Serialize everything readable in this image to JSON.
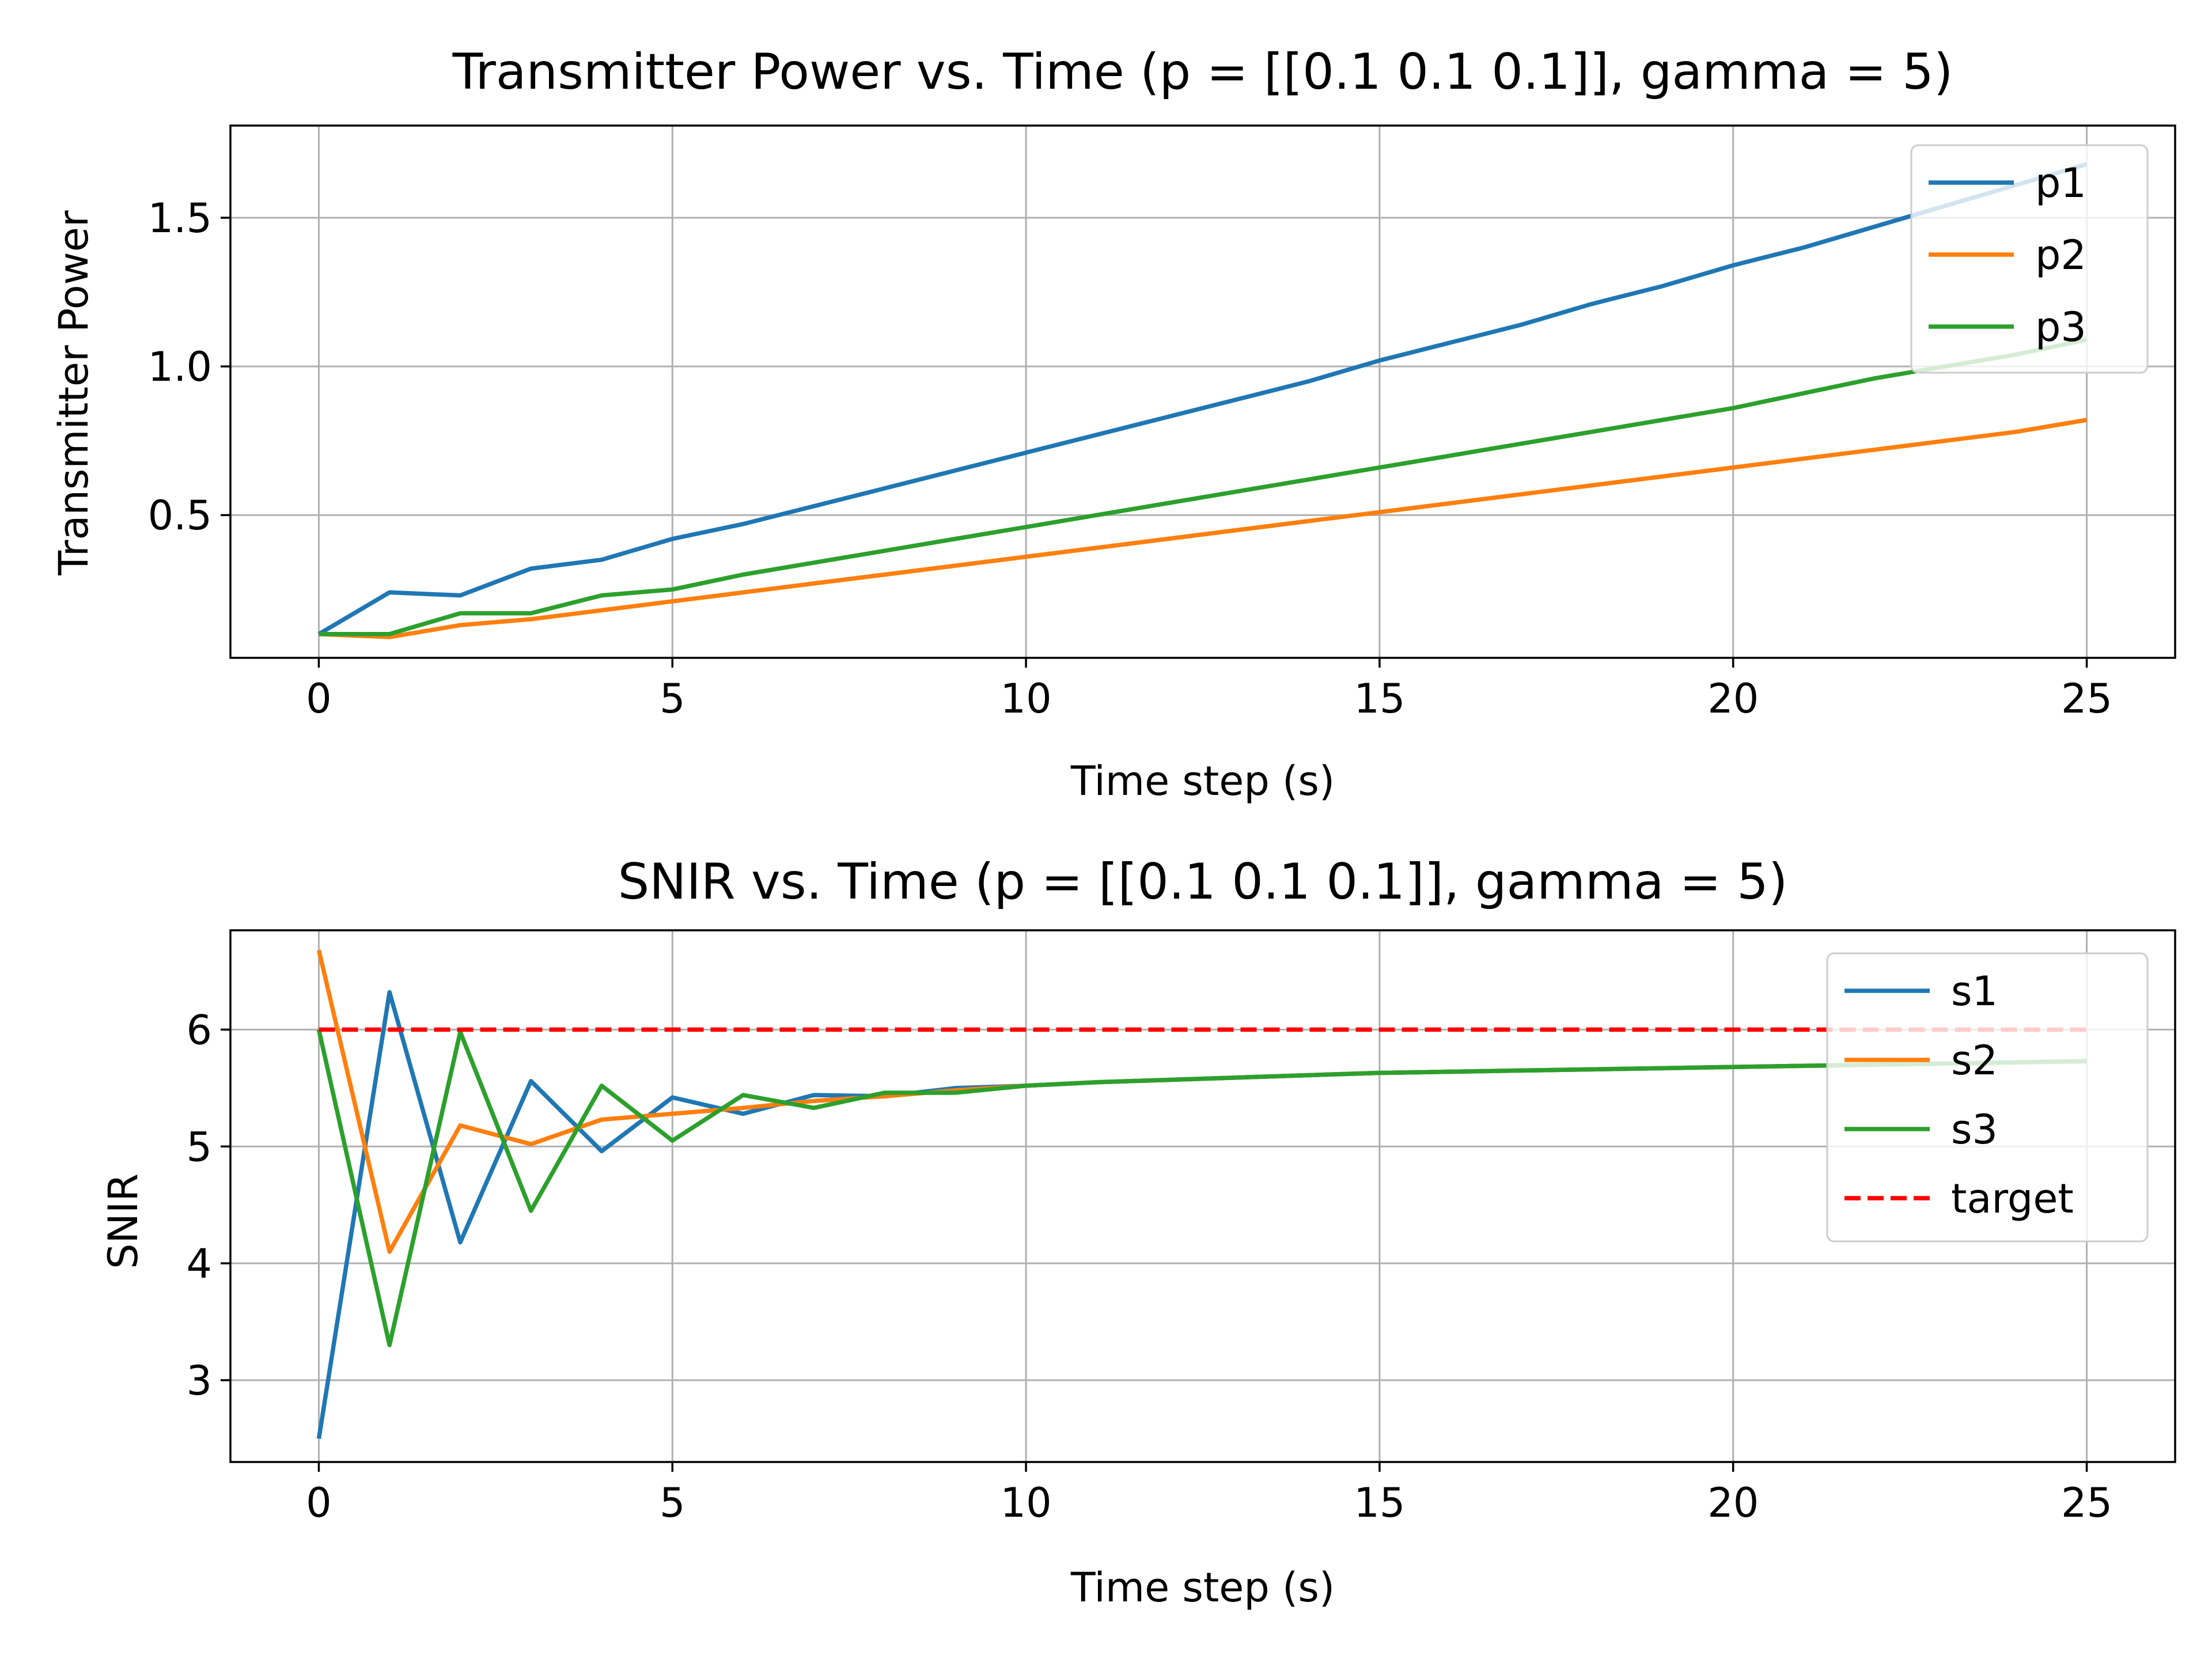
{
  "chart_data": [
    {
      "type": "line",
      "title": "Transmitter Power vs. Time (p = [[0.1 0.1 0.1]], gamma = 5)",
      "xlabel": "Time step (s)",
      "ylabel": "Transmitter Power",
      "xlim": [
        -1.25,
        26.25
      ],
      "ylim": [
        0.02,
        1.81
      ],
      "xticks": [
        0,
        5,
        10,
        15,
        20,
        25
      ],
      "yticks": [
        0.5,
        1.0,
        1.5
      ],
      "xtick_labels": [
        "0",
        "5",
        "10",
        "15",
        "20",
        "25"
      ],
      "ytick_labels": [
        "0.5",
        "1.0",
        "1.5"
      ],
      "grid": true,
      "legend_position": "top-right",
      "x": [
        0,
        1,
        2,
        3,
        4,
        5,
        6,
        7,
        8,
        9,
        10,
        11,
        12,
        13,
        14,
        15,
        16,
        17,
        18,
        19,
        20,
        21,
        22,
        23,
        24,
        25
      ],
      "series": [
        {
          "name": "p1",
          "color": "#1f77b4",
          "dashed": false,
          "values": [
            0.1,
            0.24,
            0.23,
            0.32,
            0.35,
            0.42,
            0.47,
            0.53,
            0.59,
            0.65,
            0.71,
            0.77,
            0.83,
            0.89,
            0.95,
            1.02,
            1.08,
            1.14,
            1.21,
            1.27,
            1.34,
            1.4,
            1.47,
            1.54,
            1.61,
            1.68
          ]
        },
        {
          "name": "p2",
          "color": "#ff7f0e",
          "dashed": false,
          "values": [
            0.1,
            0.09,
            0.13,
            0.15,
            0.18,
            0.21,
            0.24,
            0.27,
            0.3,
            0.33,
            0.36,
            0.39,
            0.42,
            0.45,
            0.48,
            0.51,
            0.54,
            0.57,
            0.6,
            0.63,
            0.66,
            0.69,
            0.72,
            0.75,
            0.78,
            0.82
          ]
        },
        {
          "name": "p3",
          "color": "#2ca02c",
          "dashed": false,
          "values": [
            0.1,
            0.1,
            0.17,
            0.17,
            0.23,
            0.25,
            0.3,
            0.34,
            0.38,
            0.42,
            0.46,
            0.5,
            0.54,
            0.58,
            0.62,
            0.66,
            0.7,
            0.74,
            0.78,
            0.82,
            0.86,
            0.91,
            0.96,
            1.0,
            1.04,
            1.09
          ]
        }
      ]
    },
    {
      "type": "line",
      "title": "SNIR vs. Time (p = [[0.1 0.1 0.1]], gamma = 5)",
      "xlabel": "Time step (s)",
      "ylabel": "SNIR",
      "xlim": [
        -1.25,
        26.25
      ],
      "ylim": [
        2.3,
        6.85
      ],
      "xticks": [
        0,
        5,
        10,
        15,
        20,
        25
      ],
      "yticks": [
        3,
        4,
        5,
        6
      ],
      "xtick_labels": [
        "0",
        "5",
        "10",
        "15",
        "20",
        "25"
      ],
      "ytick_labels": [
        "3",
        "4",
        "5",
        "6"
      ],
      "grid": true,
      "legend_position": "top-right",
      "x": [
        0,
        1,
        2,
        3,
        4,
        5,
        6,
        7,
        8,
        9,
        10,
        11,
        12,
        13,
        14,
        15,
        16,
        17,
        18,
        19,
        20,
        21,
        22,
        23,
        24,
        25
      ],
      "series": [
        {
          "name": "s1",
          "color": "#1f77b4",
          "dashed": false,
          "values": [
            2.5,
            6.32,
            4.18,
            5.56,
            4.96,
            5.42,
            5.28,
            5.44,
            5.43,
            5.5,
            5.52,
            5.55,
            5.57,
            5.59,
            5.61,
            5.63,
            5.64,
            5.65,
            5.66,
            5.67,
            5.68,
            5.69,
            5.7,
            5.71,
            5.72,
            5.73
          ]
        },
        {
          "name": "s2",
          "color": "#ff7f0e",
          "dashed": false,
          "values": [
            6.68,
            4.1,
            5.18,
            5.02,
            5.23,
            5.28,
            5.33,
            5.39,
            5.43,
            5.48,
            5.52,
            5.55,
            5.57,
            5.59,
            5.61,
            5.63,
            5.64,
            5.65,
            5.66,
            5.67,
            5.68,
            5.69,
            5.7,
            5.71,
            5.72,
            5.73
          ]
        },
        {
          "name": "s3",
          "color": "#2ca02c",
          "dashed": false,
          "values": [
            6.0,
            3.3,
            5.98,
            4.45,
            5.52,
            5.05,
            5.44,
            5.33,
            5.46,
            5.46,
            5.52,
            5.55,
            5.57,
            5.59,
            5.61,
            5.63,
            5.64,
            5.65,
            5.66,
            5.67,
            5.68,
            5.69,
            5.7,
            5.71,
            5.72,
            5.73
          ]
        },
        {
          "name": "target",
          "color": "#ff0000",
          "dashed": true,
          "values": [
            6,
            6,
            6,
            6,
            6,
            6,
            6,
            6,
            6,
            6,
            6,
            6,
            6,
            6,
            6,
            6,
            6,
            6,
            6,
            6,
            6,
            6,
            6,
            6,
            6,
            6
          ]
        }
      ]
    }
  ]
}
